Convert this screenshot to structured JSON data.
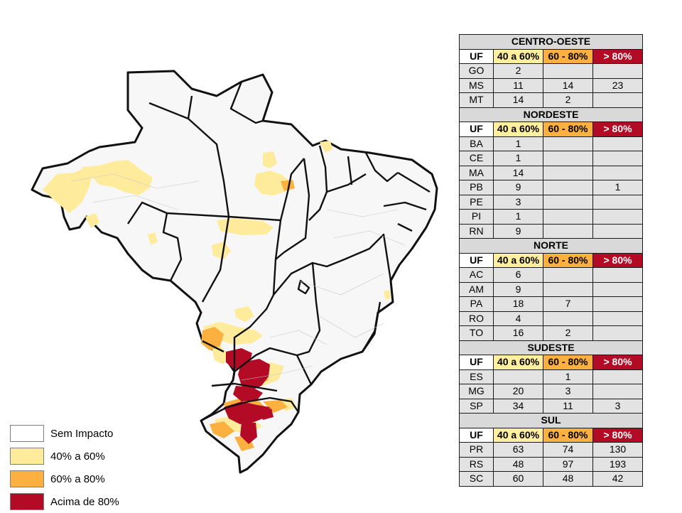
{
  "legend": [
    {
      "label": "Sem Impacto",
      "color": "#ffffff"
    },
    {
      "label": "40% a 60%",
      "color": "#ffeb9c"
    },
    {
      "label": "60% a 80%",
      "color": "#fbb040"
    },
    {
      "label": "Acima de 80%",
      "color": "#b30b26"
    }
  ],
  "headers": {
    "uf": "UF",
    "c1": "40 a 60%",
    "c2": "60 - 80%",
    "c3": "> 80%"
  },
  "regions": [
    {
      "name": "CENTRO-OESTE",
      "rows": [
        {
          "uf": "GO",
          "c1": "2",
          "c2": "",
          "c3": ""
        },
        {
          "uf": "MS",
          "c1": "11",
          "c2": "14",
          "c3": "23"
        },
        {
          "uf": "MT",
          "c1": "14",
          "c2": "2",
          "c3": ""
        }
      ]
    },
    {
      "name": "NORDESTE",
      "rows": [
        {
          "uf": "BA",
          "c1": "1",
          "c2": "",
          "c3": ""
        },
        {
          "uf": "CE",
          "c1": "1",
          "c2": "",
          "c3": ""
        },
        {
          "uf": "MA",
          "c1": "14",
          "c2": "",
          "c3": ""
        },
        {
          "uf": "PB",
          "c1": "9",
          "c2": "",
          "c3": "1"
        },
        {
          "uf": "PE",
          "c1": "3",
          "c2": "",
          "c3": ""
        },
        {
          "uf": "PI",
          "c1": "1",
          "c2": "",
          "c3": ""
        },
        {
          "uf": "RN",
          "c1": "9",
          "c2": "",
          "c3": ""
        }
      ]
    },
    {
      "name": "NORTE",
      "rows": [
        {
          "uf": "AC",
          "c1": "6",
          "c2": "",
          "c3": ""
        },
        {
          "uf": "AM",
          "c1": "9",
          "c2": "",
          "c3": ""
        },
        {
          "uf": "PA",
          "c1": "18",
          "c2": "7",
          "c3": ""
        },
        {
          "uf": "RO",
          "c1": "4",
          "c2": "",
          "c3": ""
        },
        {
          "uf": "TO",
          "c1": "16",
          "c2": "2",
          "c3": ""
        }
      ]
    },
    {
      "name": "SUDESTE",
      "rows": [
        {
          "uf": "ES",
          "c1": "",
          "c2": "1",
          "c3": ""
        },
        {
          "uf": "MG",
          "c1": "20",
          "c2": "3",
          "c3": ""
        },
        {
          "uf": "SP",
          "c1": "34",
          "c2": "11",
          "c3": "3"
        }
      ]
    },
    {
      "name": "SUL",
      "rows": [
        {
          "uf": "PR",
          "c1": "63",
          "c2": "74",
          "c3": "130"
        },
        {
          "uf": "RS",
          "c1": "48",
          "c2": "97",
          "c3": "193"
        },
        {
          "uf": "SC",
          "c1": "60",
          "c2": "48",
          "c3": "42"
        }
      ]
    }
  ]
}
